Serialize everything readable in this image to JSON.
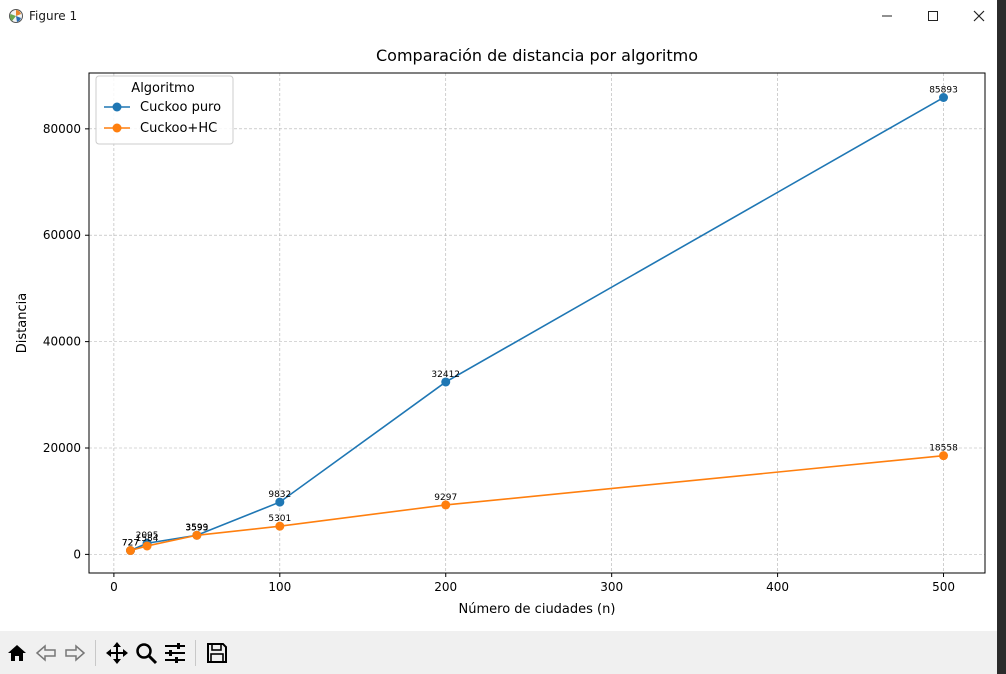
{
  "window": {
    "title": "Figure 1",
    "controls": [
      "minimize",
      "maximize",
      "close"
    ]
  },
  "toolbar": {
    "buttons": [
      "home-icon",
      "back-icon",
      "forward-icon",
      "pan-icon",
      "zoom-icon",
      "configure-subplots-icon",
      "save-icon"
    ]
  },
  "chart_data": {
    "type": "line",
    "title": "Comparación de distancia por algoritmo",
    "xlabel": "Número de ciudades (n)",
    "ylabel": "Distancia",
    "xlim": [
      -15,
      525
    ],
    "ylim": [
      -3500,
      90500
    ],
    "xticks": [
      0,
      100,
      200,
      300,
      400,
      500
    ],
    "yticks": [
      0,
      20000,
      40000,
      60000,
      80000
    ],
    "grid": true,
    "legend": {
      "title": "Algoritmo",
      "placement": "top-left"
    },
    "x": [
      10,
      20,
      50,
      100,
      200,
      500
    ],
    "series": [
      {
        "name": "Cuckoo puro",
        "color": "#1f77b4",
        "values": [
          727,
          2095,
          3599,
          9832,
          32412,
          85893
        ]
      },
      {
        "name": "Cuckoo+HC",
        "color": "#ff7f0e",
        "values": [
          727,
          1584,
          3593,
          5301,
          9297,
          18558
        ]
      }
    ]
  }
}
